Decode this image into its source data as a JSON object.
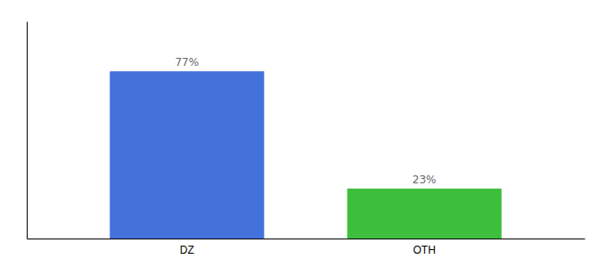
{
  "chart_data": {
    "type": "bar",
    "categories": [
      "DZ",
      "OTH"
    ],
    "values": [
      77,
      23
    ],
    "value_labels": [
      "77%",
      "23%"
    ],
    "colors": [
      "#4472db",
      "#3dbe3d"
    ],
    "ylim": [
      0,
      100
    ],
    "data_labels": true,
    "tick_labels": "x"
  }
}
